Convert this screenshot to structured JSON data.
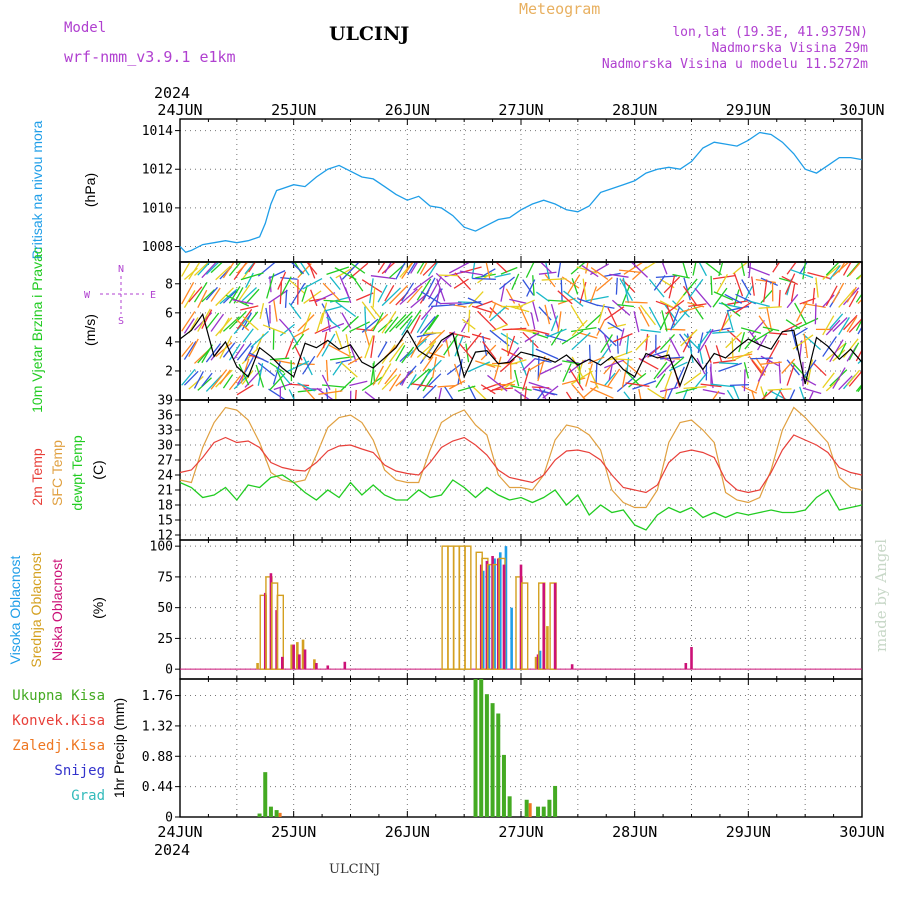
{
  "header": {
    "model_label": "Model",
    "model_name": "wrf-nmm_v3.9.1 e1km",
    "title": "ULCINJ",
    "meteogram": "Meteogram",
    "lonlat": "lon,lat (19.3E, 41.9375N)",
    "elevation": "Nadmorska Visina 29m",
    "elevation_model": "Nadmorska Visina u modelu 11.5272m"
  },
  "footer": {
    "station": "ULCINJ",
    "watermark": "made by Angel"
  },
  "colors": {
    "pressure": "#1f9ee8",
    "wind_speed": "#000000",
    "t2m": "#e8403a",
    "sfc": "#e0a040",
    "dewpt": "#22cc22",
    "high_cloud": "#1f9ee8",
    "mid_cloud": "#d4a020",
    "low_cloud": "#cc1177",
    "total_precip": "#44aa22",
    "conv_precip": "#e8403a",
    "frozen_precip": "#ee7722",
    "snow": "#3333cc",
    "graupel": "#33bbbb",
    "label_purple": "#b040d0",
    "meteogram_orange": "#e8b060"
  },
  "chart_data": [
    {
      "type": "line",
      "panel": "pressure",
      "ylabel_left": "Pritisak na nivou mora",
      "ylabel_unit": "(hPa)",
      "ylim": [
        1007.2,
        1014.6
      ],
      "yticks": [
        "1008",
        "1010",
        "1012",
        "1014"
      ],
      "x": [
        0,
        0.05,
        0.1,
        0.2,
        0.3,
        0.4,
        0.5,
        0.6,
        0.7,
        0.75,
        0.8,
        0.85,
        0.9,
        1.0,
        1.1,
        1.2,
        1.3,
        1.4,
        1.5,
        1.6,
        1.7,
        1.8,
        1.9,
        2.0,
        2.1,
        2.2,
        2.3,
        2.4,
        2.5,
        2.6,
        2.7,
        2.8,
        2.9,
        3.0,
        3.1,
        3.2,
        3.3,
        3.4,
        3.5,
        3.6,
        3.7,
        3.8,
        3.9,
        4.0,
        4.1,
        4.2,
        4.3,
        4.4,
        4.5,
        4.6,
        4.7,
        4.8,
        4.9,
        5.0,
        5.1,
        5.2,
        5.3,
        5.4,
        5.5,
        5.6,
        5.7,
        5.8,
        5.9,
        6.0
      ],
      "series": [
        {
          "name": "",
          "values": [
            1008.0,
            1007.7,
            1007.8,
            1008.1,
            1008.2,
            1008.3,
            1008.2,
            1008.3,
            1008.5,
            1009.2,
            1010.2,
            1010.9,
            1011.0,
            1011.2,
            1011.1,
            1011.6,
            1012.0,
            1012.2,
            1011.9,
            1011.6,
            1011.5,
            1011.1,
            1010.7,
            1010.4,
            1010.6,
            1010.1,
            1010.0,
            1009.6,
            1009.0,
            1008.8,
            1009.1,
            1009.4,
            1009.5,
            1009.9,
            1010.2,
            1010.4,
            1010.2,
            1009.9,
            1009.8,
            1010.1,
            1010.8,
            1011.0,
            1011.2,
            1011.4,
            1011.8,
            1012.0,
            1012.1,
            1012.0,
            1012.4,
            1013.1,
            1013.4,
            1013.3,
            1013.2,
            1013.5,
            1013.9,
            1013.8,
            1013.4,
            1012.8,
            1012.0,
            1011.8,
            1012.2,
            1012.6,
            1012.6,
            1012.5
          ]
        }
      ]
    },
    {
      "type": "line",
      "panel": "wind",
      "ylabel_left": "10m Vjetar Brzina i Pravac",
      "ylabel_unit": "(m/s)",
      "compass": {
        "n": "N",
        "s": "S",
        "e": "E",
        "w": "W"
      },
      "ylim": [
        0,
        9.5
      ],
      "yticks": [
        "2",
        "4",
        "6",
        "8"
      ],
      "x": [
        0,
        0.1,
        0.2,
        0.3,
        0.4,
        0.5,
        0.6,
        0.7,
        0.8,
        0.9,
        1.0,
        1.1,
        1.2,
        1.3,
        1.4,
        1.5,
        1.6,
        1.7,
        1.8,
        1.9,
        2.0,
        2.1,
        2.2,
        2.3,
        2.4,
        2.5,
        2.6,
        2.7,
        2.8,
        2.9,
        3.0,
        3.1,
        3.2,
        3.3,
        3.4,
        3.5,
        3.6,
        3.7,
        3.8,
        3.9,
        4.0,
        4.1,
        4.2,
        4.3,
        4.4,
        4.5,
        4.6,
        4.7,
        4.8,
        4.9,
        5.0,
        5.1,
        5.2,
        5.3,
        5.4,
        5.5,
        5.6,
        5.7,
        5.8,
        5.9,
        6.0
      ],
      "series": [
        {
          "name": "",
          "values": [
            4.2,
            4.8,
            5.9,
            3.0,
            4.0,
            2.3,
            1.6,
            3.6,
            3.0,
            2.2,
            1.6,
            3.9,
            3.6,
            4.1,
            3.5,
            3.8,
            2.6,
            2.2,
            2.9,
            3.6,
            4.8,
            3.4,
            2.9,
            4.1,
            4.6,
            1.6,
            3.3,
            3.4,
            2.5,
            2.6,
            3.3,
            3.1,
            2.9,
            2.6,
            3.1,
            2.4,
            2.8,
            2.4,
            3.0,
            2.1,
            1.6,
            3.2,
            2.9,
            3.1,
            1.0,
            3.1,
            2.1,
            3.2,
            2.9,
            3.6,
            4.2,
            3.8,
            3.5,
            4.7,
            4.8,
            1.1,
            4.3,
            3.7,
            2.8,
            3.5,
            2.6
          ]
        }
      ]
    },
    {
      "type": "line",
      "panel": "temperature",
      "ylabels": [
        "2m Temp",
        "SFC Temp",
        "dewpt Temp"
      ],
      "ylabel_unit": "(C)",
      "ylim": [
        11,
        39
      ],
      "yticks": [
        "12",
        "15",
        "18",
        "21",
        "24",
        "27",
        "30",
        "33",
        "36",
        "39"
      ],
      "x": [
        0,
        0.1,
        0.2,
        0.3,
        0.4,
        0.5,
        0.6,
        0.7,
        0.8,
        0.9,
        1.0,
        1.1,
        1.2,
        1.3,
        1.4,
        1.5,
        1.6,
        1.7,
        1.8,
        1.9,
        2.0,
        2.1,
        2.2,
        2.3,
        2.4,
        2.5,
        2.6,
        2.7,
        2.8,
        2.9,
        3.0,
        3.1,
        3.2,
        3.3,
        3.4,
        3.5,
        3.6,
        3.7,
        3.8,
        3.9,
        4.0,
        4.1,
        4.2,
        4.3,
        4.4,
        4.5,
        4.6,
        4.7,
        4.8,
        4.9,
        5.0,
        5.1,
        5.2,
        5.3,
        5.4,
        5.5,
        5.6,
        5.7,
        5.8,
        5.9,
        6.0
      ],
      "series": [
        {
          "name": "2m Temp",
          "values": [
            24.5,
            25.0,
            27.5,
            30.5,
            31.5,
            30.5,
            30.8,
            29.5,
            26.5,
            25.5,
            25.0,
            24.8,
            26.5,
            28.8,
            29.8,
            30.0,
            29.2,
            28.5,
            26.0,
            24.8,
            24.3,
            24.0,
            26.5,
            29.5,
            30.8,
            31.5,
            30.0,
            28.0,
            25.0,
            23.5,
            23.0,
            22.5,
            24.0,
            27.0,
            28.8,
            29.0,
            28.5,
            27.0,
            24.0,
            21.5,
            21.0,
            20.5,
            22.0,
            26.5,
            28.5,
            29.0,
            28.5,
            27.5,
            23.0,
            21.0,
            20.5,
            21.0,
            24.5,
            29.0,
            32.0,
            31.0,
            30.0,
            28.5,
            25.5,
            24.5,
            24.0
          ]
        },
        {
          "name": "SFC Temp",
          "values": [
            23.0,
            22.5,
            29.5,
            34.5,
            37.5,
            37.0,
            35.0,
            30.5,
            24.5,
            23.0,
            22.5,
            23.0,
            28.0,
            33.5,
            35.5,
            36.0,
            34.5,
            31.0,
            25.0,
            23.0,
            22.5,
            22.5,
            29.0,
            34.5,
            36.0,
            37.0,
            34.0,
            32.0,
            24.0,
            21.5,
            21.5,
            21.0,
            24.0,
            31.0,
            34.0,
            33.5,
            32.0,
            29.0,
            21.0,
            18.5,
            17.5,
            17.5,
            21.0,
            30.5,
            34.5,
            35.0,
            33.0,
            30.5,
            20.5,
            19.0,
            18.5,
            19.5,
            25.0,
            33.0,
            37.5,
            35.5,
            33.0,
            30.5,
            23.5,
            21.5,
            21.0
          ]
        },
        {
          "name": "dewpt Temp",
          "values": [
            22.5,
            21.5,
            19.5,
            20.0,
            21.5,
            19.0,
            22.0,
            21.5,
            23.5,
            24.0,
            22.5,
            20.5,
            19.0,
            21.0,
            19.5,
            22.5,
            20.0,
            22.0,
            20.0,
            19.0,
            19.0,
            21.0,
            19.5,
            20.0,
            23.0,
            21.5,
            19.5,
            21.5,
            20.0,
            19.0,
            19.5,
            18.5,
            19.5,
            21.0,
            18.0,
            20.0,
            16.0,
            18.0,
            16.5,
            17.0,
            14.0,
            13.0,
            16.0,
            17.5,
            16.5,
            17.5,
            15.5,
            16.5,
            15.5,
            16.5,
            16.0,
            16.5,
            17.0,
            16.5,
            16.5,
            17.0,
            19.5,
            21.0,
            17.0,
            17.5,
            18.0
          ]
        }
      ]
    },
    {
      "type": "bar",
      "panel": "cloud",
      "ylabels": [
        "Visoka Oblacnost",
        "Srednja Oblacnost",
        "Niska Oblacnost"
      ],
      "ylabel_unit": "(%)",
      "ylim": [
        -8,
        105
      ],
      "yticks": [
        "0",
        "25",
        "50",
        "75",
        "100"
      ],
      "x": [
        0.7,
        0.75,
        0.8,
        0.85,
        0.9,
        1.0,
        1.05,
        1.1,
        1.2,
        1.3,
        1.45,
        2.35,
        2.4,
        2.45,
        2.5,
        2.55,
        2.65,
        2.7,
        2.75,
        2.8,
        2.85,
        2.9,
        3.0,
        3.05,
        3.15,
        3.2,
        3.25,
        3.3,
        3.45,
        4.45,
        4.5
      ],
      "series": [
        {
          "name": "Visoka Oblacnost",
          "values": [
            0,
            0,
            0,
            0,
            0,
            0,
            0,
            0,
            0,
            0,
            0,
            0,
            0,
            0,
            0,
            0,
            80,
            85,
            90,
            95,
            100,
            50,
            0,
            0,
            15,
            0,
            0,
            0,
            0,
            0,
            0
          ]
        },
        {
          "name": "Srednja Oblacnost",
          "values": [
            5,
            60,
            75,
            70,
            60,
            20,
            22,
            24,
            8,
            0,
            0,
            100,
            100,
            100,
            100,
            100,
            95,
            90,
            85,
            85,
            90,
            0,
            75,
            70,
            10,
            70,
            35,
            70,
            0,
            0,
            0
          ]
        },
        {
          "name": "Niska Oblacnost",
          "values": [
            0,
            62,
            78,
            48,
            10,
            20,
            12,
            16,
            5,
            3,
            6,
            0,
            0,
            0,
            0,
            0,
            85,
            88,
            92,
            90,
            85,
            0,
            85,
            0,
            12,
            70,
            0,
            70,
            4,
            5,
            18
          ]
        }
      ]
    },
    {
      "type": "bar",
      "panel": "precip",
      "ylabels": [
        "Ukupna Kisa",
        "Konvek.Kisa",
        "Zaledj.Kisa",
        "Snijeg",
        "Grad"
      ],
      "ylabel_unit": "1hr Precip (mm)",
      "ylim": [
        0,
        2.0
      ],
      "yticks": [
        "0",
        "0.44",
        "0.88",
        "1.32",
        "1.76"
      ],
      "x": [
        0.7,
        0.75,
        0.8,
        0.85,
        2.6,
        2.65,
        2.7,
        2.75,
        2.8,
        2.85,
        2.9,
        3.05,
        3.15,
        3.2,
        3.25,
        3.3
      ],
      "series": [
        {
          "name": "Ukupna Kisa",
          "values": [
            0.05,
            0.65,
            0.15,
            0.1,
            2.0,
            2.0,
            1.78,
            1.65,
            1.5,
            0.9,
            0.3,
            0.25,
            0.15,
            0.15,
            0.25,
            0.45
          ]
        },
        {
          "name": "Konvek.Kisa",
          "values": [
            0,
            0,
            0,
            0.06,
            0,
            0,
            0,
            0,
            0,
            0,
            0,
            0.2,
            0,
            0,
            0,
            0
          ]
        }
      ]
    },
    {
      "type": "axis",
      "panel": "time",
      "year_label": "2024",
      "x_ticks": [
        "24JUN",
        "25JUN",
        "26JUN",
        "27JUN",
        "28JUN",
        "29JUN",
        "30JUN"
      ]
    }
  ]
}
